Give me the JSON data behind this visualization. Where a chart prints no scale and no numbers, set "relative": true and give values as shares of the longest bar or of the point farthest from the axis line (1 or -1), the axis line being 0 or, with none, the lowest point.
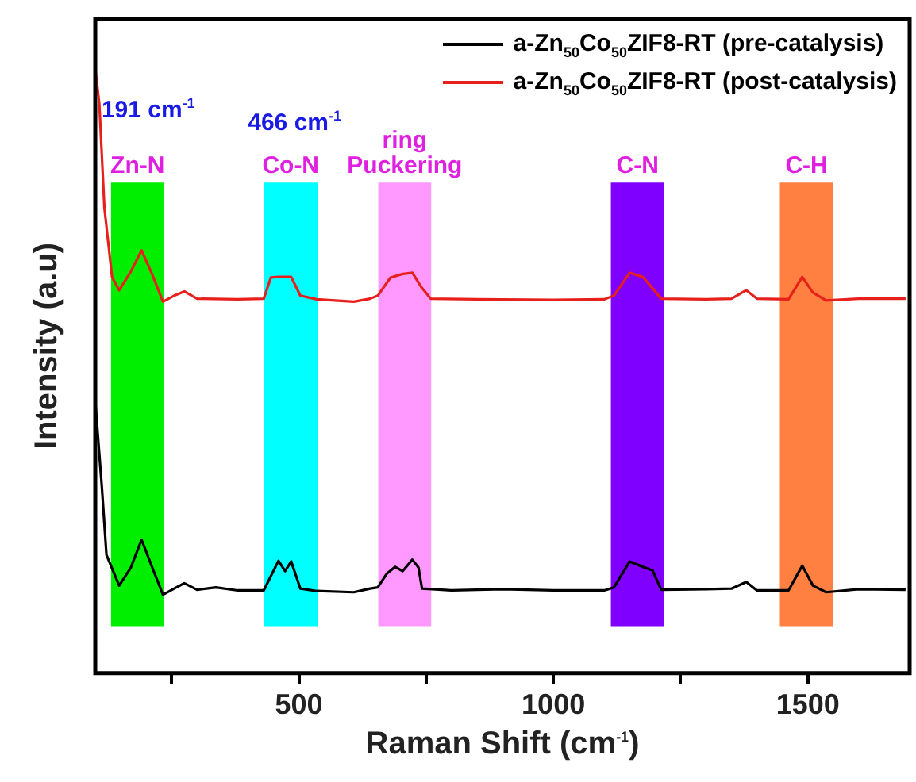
{
  "chart_data": {
    "type": "line",
    "relative": true,
    "xlabel": "Raman Shift (cm$^{-1}$)",
    "ylabel": "Intensity (a.u)",
    "xlim": [
      100,
      1700
    ],
    "xticks": [
      {
        "value": 250,
        "label": null
      },
      500,
      {
        "value": 750,
        "label": null
      },
      1000,
      {
        "value": 1250,
        "label": null
      },
      1500
    ],
    "tick_labels": "x",
    "grid": false,
    "legend": "top right",
    "marker": "none",
    "line_style": "solid",
    "series": [
      {
        "name": "a-Zn$_{50}$Co$_{50}$ZIF8-RT (pre-catalysis)",
        "color": "#000000",
        "x": [
          100,
          113,
          122,
          147,
          170,
          191,
          212,
          233,
          255,
          275,
          300,
          337,
          380,
          431,
          460,
          473,
          485,
          503,
          535,
          608,
          640,
          655,
          673,
          689,
          704,
          723,
          735,
          742,
          800,
          900,
          1000,
          1100,
          1119,
          1150,
          1176,
          1195,
          1212,
          1300,
          1350,
          1379,
          1400,
          1462,
          1489,
          1510,
          1536,
          1600,
          1692
        ],
        "values": [
          0.45,
          0.308,
          0.196,
          0.145,
          0.175,
          0.221,
          0.175,
          0.13,
          0.14,
          0.149,
          0.138,
          0.142,
          0.137,
          0.137,
          0.186,
          0.169,
          0.185,
          0.14,
          0.136,
          0.134,
          0.14,
          0.142,
          0.165,
          0.176,
          0.169,
          0.188,
          0.175,
          0.14,
          0.137,
          0.139,
          0.137,
          0.137,
          0.142,
          0.185,
          0.176,
          0.17,
          0.138,
          0.139,
          0.14,
          0.151,
          0.137,
          0.137,
          0.178,
          0.145,
          0.134,
          0.139,
          0.138
        ]
      },
      {
        "name": "a-Zn$_{50}$Co$_{50}$ZIF8-RT (post-catalysis)",
        "color": "#e8201c",
        "x": [
          100,
          108,
          118,
          133,
          147,
          170,
          191,
          212,
          233,
          255,
          275,
          300,
          380,
          431,
          445,
          460,
          485,
          503,
          535,
          608,
          640,
          655,
          680,
          704,
          723,
          740,
          759,
          850,
          1000,
          1100,
          1119,
          1150,
          1176,
          1212,
          1300,
          1350,
          1379,
          1400,
          1462,
          1489,
          1510,
          1536,
          1600,
          1692
        ],
        "values": [
          1,
          0.943,
          0.77,
          0.656,
          0.634,
          0.665,
          0.7,
          0.66,
          0.615,
          0.625,
          0.632,
          0.62,
          0.619,
          0.62,
          0.655,
          0.656,
          0.656,
          0.625,
          0.619,
          0.615,
          0.62,
          0.625,
          0.655,
          0.661,
          0.663,
          0.64,
          0.62,
          0.619,
          0.618,
          0.619,
          0.625,
          0.663,
          0.656,
          0.62,
          0.619,
          0.62,
          0.634,
          0.62,
          0.619,
          0.656,
          0.63,
          0.617,
          0.62,
          0.62
        ]
      }
    ],
    "bands": [
      {
        "axis": "x",
        "from": 131,
        "to": 235,
        "label": "Zn-N",
        "color": "#00ee00"
      },
      {
        "axis": "x",
        "from": 431,
        "to": 537,
        "label": "Co-N",
        "color": "#00ffff"
      },
      {
        "axis": "x",
        "from": 656,
        "to": 760,
        "label": "ring\nPuckering",
        "color": "#ff99ff"
      },
      {
        "axis": "x",
        "from": 1113,
        "to": 1218,
        "label": "C-N",
        "color": "#7f00ff"
      },
      {
        "axis": "x",
        "from": 1445,
        "to": 1550,
        "label": "C-H",
        "color": "#ff8040"
      }
    ],
    "annotations": [
      "191 cm$^{-1}$",
      "466 cm$^{-1}$"
    ]
  }
}
